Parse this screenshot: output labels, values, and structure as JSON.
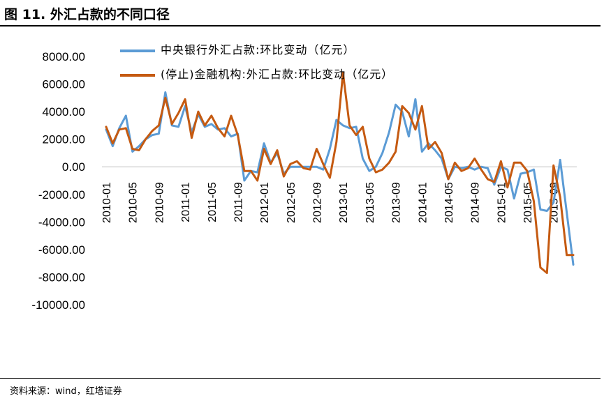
{
  "figure": {
    "title": "图 11. 外汇占款的不同口径",
    "source": "资料来源：wind，红塔证券"
  },
  "chart_data": {
    "type": "line",
    "title": "",
    "xlabel": "",
    "ylabel": "",
    "ylim": [
      -10000,
      8000
    ],
    "y_ticks": [
      "8000.00",
      "6000.00",
      "4000.00",
      "2000.00",
      "0.00",
      "-2000.00",
      "-4000.00",
      "-6000.00",
      "-8000.00",
      "-10000.00"
    ],
    "y_tick_values": [
      8000,
      6000,
      4000,
      2000,
      0,
      -2000,
      -4000,
      -6000,
      -8000,
      -10000
    ],
    "x": [
      "2010-01",
      "2010-02",
      "2010-03",
      "2010-04",
      "2010-05",
      "2010-06",
      "2010-07",
      "2010-08",
      "2010-09",
      "2010-10",
      "2010-11",
      "2010-12",
      "2011-01",
      "2011-02",
      "2011-03",
      "2011-04",
      "2011-05",
      "2011-06",
      "2011-07",
      "2011-08",
      "2011-09",
      "2011-10",
      "2011-11",
      "2011-12",
      "2012-01",
      "2012-02",
      "2012-03",
      "2012-04",
      "2012-05",
      "2012-06",
      "2012-07",
      "2012-08",
      "2012-09",
      "2012-10",
      "2012-11",
      "2012-12",
      "2013-01",
      "2013-02",
      "2013-03",
      "2013-04",
      "2013-05",
      "2013-06",
      "2013-07",
      "2013-08",
      "2013-09",
      "2013-10",
      "2013-11",
      "2013-12",
      "2014-01",
      "2014-02",
      "2014-03",
      "2014-04",
      "2014-05",
      "2014-06",
      "2014-07",
      "2014-08",
      "2014-09",
      "2014-10",
      "2014-11",
      "2014-12",
      "2015-01",
      "2015-02",
      "2015-03",
      "2015-04",
      "2015-05",
      "2015-06",
      "2015-07",
      "2015-08",
      "2015-09",
      "2015-10",
      "2015-11",
      "2015-12"
    ],
    "x_tick_labels": [
      "2010-01",
      "2010-05",
      "2010-09",
      "2011-01",
      "2011-05",
      "2011-09",
      "2012-01",
      "2012-05",
      "2012-09",
      "2013-01",
      "2013-05",
      "2013-09",
      "2014-01",
      "2014-05",
      "2014-09",
      "2015-01",
      "2015-05",
      "2015-09"
    ],
    "grid": false,
    "legend_position": "top-left",
    "series": [
      {
        "name": "中央银行外汇占款:环比变动（亿元）",
        "color": "#5b9bd5",
        "values": [
          2700,
          1500,
          2800,
          3700,
          1100,
          1500,
          2000,
          2300,
          2400,
          5400,
          3000,
          2900,
          4400,
          2500,
          3800,
          2900,
          3100,
          2700,
          2800,
          2200,
          2400,
          -1000,
          -300,
          -400,
          1700,
          300,
          1000,
          -500,
          0,
          0,
          0,
          0,
          0,
          -200,
          1300,
          3400,
          3000,
          2800,
          2900,
          600,
          -300,
          0,
          1000,
          2500,
          4500,
          4000,
          2200,
          4900,
          1100,
          1700,
          1200,
          600,
          -900,
          0,
          -100,
          0,
          -200,
          0,
          -100,
          -1300,
          0,
          -200,
          -2300,
          -500,
          -400,
          -200,
          -3100,
          -3200,
          -2600,
          500,
          -3300,
          -7100
        ]
      },
      {
        "name": "(停止)金融机构:外汇占款:环比变动（亿元）",
        "color": "#c55a11",
        "values": [
          2900,
          1700,
          2700,
          2800,
          1300,
          1200,
          2000,
          2600,
          3000,
          5000,
          3100,
          3900,
          4900,
          2100,
          4000,
          3000,
          3700,
          2800,
          2200,
          3700,
          2300,
          -300,
          -300,
          -1000,
          1300,
          200,
          1200,
          -700,
          200,
          400,
          -100,
          -200,
          1300,
          200,
          -800,
          1800,
          6800,
          3000,
          2300,
          2900,
          600,
          -400,
          -200,
          300,
          1100,
          4400,
          3900,
          2700,
          4400,
          1300,
          1800,
          1000,
          -900,
          300,
          -300,
          -100,
          600,
          -200,
          -900,
          -1100,
          400,
          -1500,
          300,
          300,
          -300,
          -2500,
          -7300,
          -7700,
          100,
          -2200,
          -6400,
          -6400
        ]
      }
    ]
  }
}
